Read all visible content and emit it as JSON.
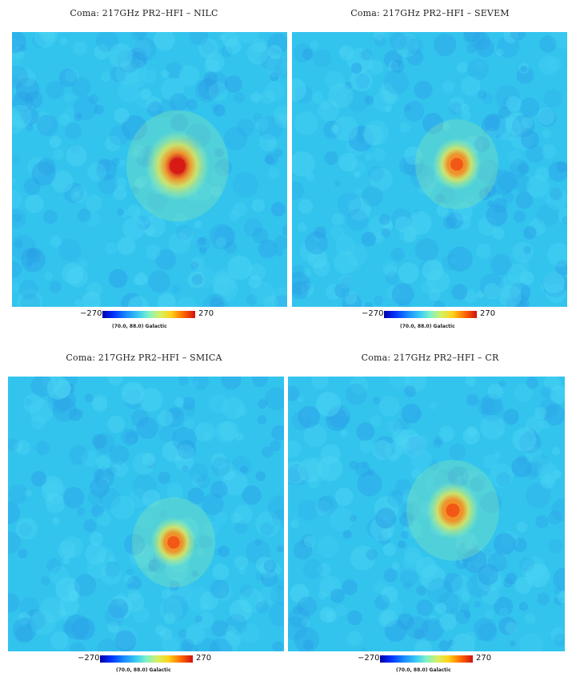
{
  "colors": {
    "background": "#33c4ee",
    "speckle_light": "#4fd6f4",
    "speckle_dark": "#2a9ee6",
    "core": "#d81a14",
    "ring_orange": "#ff8c1a",
    "ring_yellow": "#f2e84a",
    "ring_green": "#9ef0a0"
  },
  "panels": [
    {
      "title": "Coma: 217GHz PR2–HFI – NILC",
      "cb_min": "−270",
      "cb_max": "270",
      "coord": "(70.0, 88.0) Galactic",
      "peak_level": 1.0,
      "halo_level": 0.9
    },
    {
      "title": "Coma: 217GHz PR2–HFI – SEVEM",
      "cb_min": "−270",
      "cb_max": "270",
      "coord": "(70.0, 88.0) Galactic",
      "peak_level": 0.75,
      "halo_level": 0.7
    },
    {
      "title": "Coma: 217GHz PR2–HFI – SMICA",
      "cb_min": "−270",
      "cb_max": "270",
      "coord": "(70.0, 88.0) Galactic",
      "peak_level": 0.72,
      "halo_level": 0.7
    },
    {
      "title": "Coma: 217GHz PR2–HFI – CR",
      "cb_min": "−270",
      "cb_max": "270",
      "coord": "(70.0, 88.0) Galactic",
      "peak_level": 0.82,
      "halo_level": 0.8
    }
  ]
}
